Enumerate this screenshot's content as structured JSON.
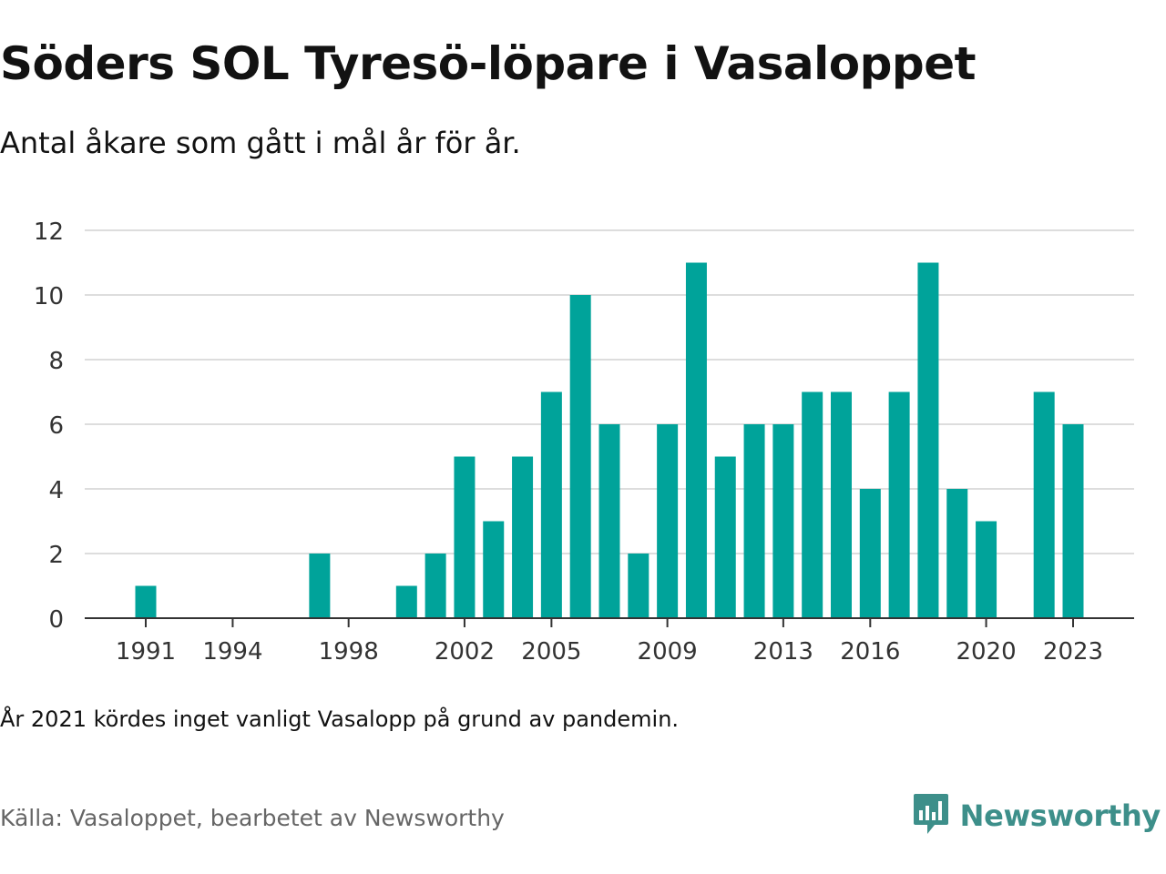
{
  "header": {
    "title": "Söders SOL Tyresö-löpare i Vasaloppet",
    "subtitle": "Antal åkare som gått i mål år för år."
  },
  "footer": {
    "note": "År 2021 kördes inget vanligt Vasalopp på grund av pandemin.",
    "source": "Källa: Vasaloppet, bearbetet av Newsworthy",
    "brand": "Newsworthy"
  },
  "colors": {
    "bar": "#00a39a",
    "brand": "#3d8f8a",
    "grid": "#dddddd",
    "axis": "#333333"
  },
  "icons": {
    "brand_logo": "bar-chart-speech-bubble-icon"
  },
  "chart_data": {
    "type": "bar",
    "x": [
      1991,
      1992,
      1993,
      1994,
      1995,
      1996,
      1997,
      1998,
      1999,
      2000,
      2001,
      2002,
      2003,
      2004,
      2005,
      2006,
      2007,
      2008,
      2009,
      2010,
      2011,
      2012,
      2013,
      2014,
      2015,
      2016,
      2017,
      2018,
      2019,
      2020,
      2021,
      2022,
      2023
    ],
    "values": [
      1,
      0,
      0,
      0,
      0,
      0,
      2,
      0,
      0,
      1,
      2,
      5,
      3,
      5,
      7,
      10,
      6,
      2,
      6,
      11,
      5,
      6,
      6,
      7,
      7,
      4,
      7,
      11,
      4,
      3,
      0,
      7,
      6
    ],
    "xticks": [
      "1991",
      "1994",
      "1998",
      "2002",
      "2005",
      "2009",
      "2013",
      "2016",
      "2020",
      "2023"
    ],
    "yticks": [
      "0",
      "2",
      "4",
      "6",
      "8",
      "10",
      "12"
    ],
    "ylim": [
      0,
      12
    ],
    "grid": true,
    "legend": "none"
  }
}
